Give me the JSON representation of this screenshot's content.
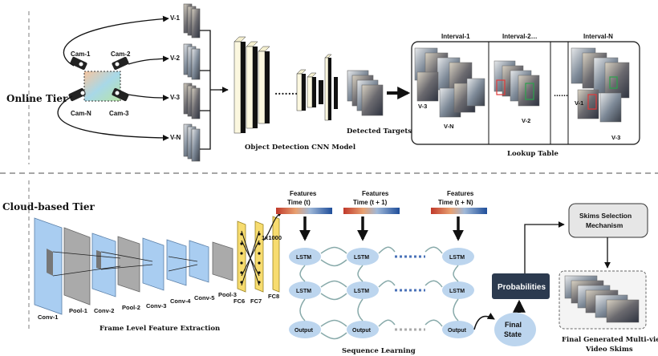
{
  "tiers": {
    "online": "Online Tier",
    "cloud": "Cloud-based Tier"
  },
  "cameras": [
    "Cam-1",
    "Cam-2",
    "Cam-N",
    "Cam-3"
  ],
  "views": [
    "V-1",
    "V-2",
    "V-3",
    "V-N"
  ],
  "online": {
    "detection_model": "Object Detection CNN Model",
    "detected_targets": "Detected Targets",
    "lookup_table": "Lookup Table",
    "intervals": [
      "Interval-1",
      "Interval-2…",
      "Interval-N"
    ],
    "interval_views": {
      "i1": [
        "V-3",
        "V-N"
      ],
      "i2": [
        "V-2"
      ],
      "iN": [
        "V-1",
        "V-3"
      ]
    },
    "ellipsis": "……"
  },
  "cloud": {
    "layers": [
      "Conv-1",
      "Pool-1",
      "Conv-2",
      "Pool-2",
      "Conv-3",
      "Conv-4",
      "Conv-5",
      "Pool-3",
      "FC6",
      "FC7",
      "FC8"
    ],
    "fc_size": "1x1000",
    "feature_extraction": "Frame Level Feature Extraction",
    "features": [
      {
        "line1": "Features",
        "line2": "Time (t)"
      },
      {
        "line1": "Features",
        "line2": "Time (t + 1)"
      },
      {
        "line1": "Features",
        "line2": "Time (t + N)"
      }
    ],
    "lstm": "LSTM",
    "output": "Output",
    "sequence_learning": "Sequence Learning",
    "final_state": [
      "Final",
      "State"
    ],
    "probabilities": "Probabilities",
    "skims_mechanism": [
      "Skims Selection",
      "Mechanism"
    ],
    "final_skims": [
      "Final Generated Multi-view",
      "Video Skims"
    ]
  }
}
